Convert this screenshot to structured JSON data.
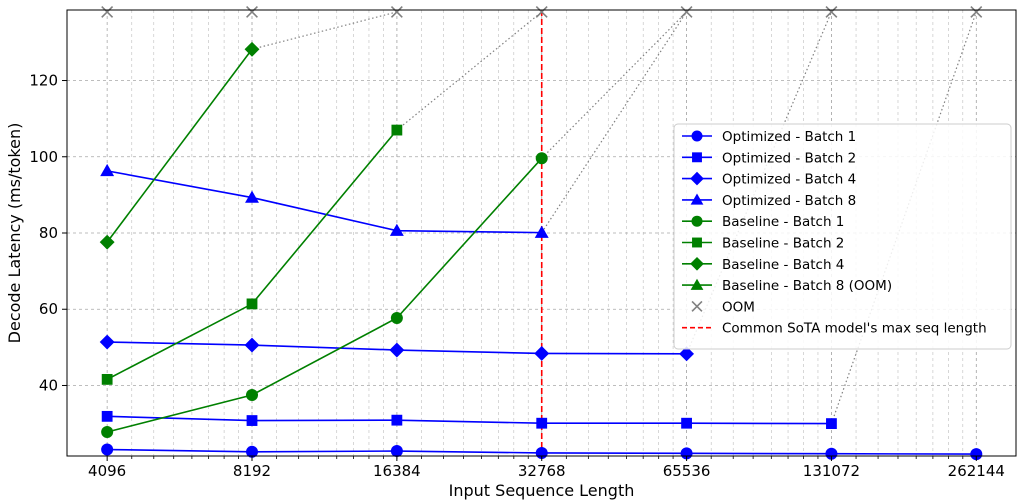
{
  "chart_data": {
    "type": "line",
    "xlabel": "Input Sequence Length",
    "ylabel": "Decode Latency (ms/token)",
    "x_scale": "log2",
    "x_ticks": [
      4096,
      8192,
      16384,
      32768,
      65536,
      131072,
      262144
    ],
    "x_tick_labels": [
      "4096",
      "8192",
      "16384",
      "32768",
      "65536",
      "131072",
      "262144"
    ],
    "xlim": [
      3380,
      317000
    ],
    "y_ticks": [
      40,
      60,
      80,
      100,
      120
    ],
    "y_tick_labels": [
      "40",
      "60",
      "80",
      "100",
      "120"
    ],
    "ylim": [
      21.5,
      138.5
    ],
    "grid": true,
    "legend_position": "center-right",
    "colors": {
      "optimized": "#0000ff",
      "baseline": "#008000",
      "oom": "#808080",
      "reference": "#ff0000"
    },
    "series": [
      {
        "name": "Optimized - Batch 1",
        "color": "#0000ff",
        "marker": "circle",
        "x": [
          4096,
          8192,
          16384,
          32768,
          65536,
          131072,
          262144
        ],
        "y": [
          23.2,
          22.6,
          22.8,
          22.3,
          22.2,
          22.1,
          22.0
        ]
      },
      {
        "name": "Optimized - Batch 2",
        "color": "#0000ff",
        "marker": "square",
        "x": [
          4096,
          8192,
          16384,
          32768,
          65536,
          131072
        ],
        "y": [
          31.9,
          30.8,
          30.9,
          30.1,
          30.1,
          30.0
        ]
      },
      {
        "name": "Optimized - Batch 4",
        "color": "#0000ff",
        "marker": "diamond",
        "x": [
          4096,
          8192,
          16384,
          32768,
          65536
        ],
        "y": [
          51.4,
          50.6,
          49.3,
          48.4,
          48.3
        ]
      },
      {
        "name": "Optimized - Batch 8",
        "color": "#0000ff",
        "marker": "triangle",
        "x": [
          4096,
          8192,
          16384,
          32768
        ],
        "y": [
          96.3,
          89.3,
          80.6,
          80.1
        ]
      },
      {
        "name": "Baseline - Batch 1",
        "color": "#008000",
        "marker": "circle",
        "x": [
          4096,
          8192,
          16384,
          32768
        ],
        "y": [
          27.8,
          37.5,
          57.7,
          99.6
        ]
      },
      {
        "name": "Baseline - Batch 2",
        "color": "#008000",
        "marker": "square",
        "x": [
          4096,
          8192,
          16384
        ],
        "y": [
          41.6,
          61.4,
          107.0
        ]
      },
      {
        "name": "Baseline - Batch 4",
        "color": "#008000",
        "marker": "diamond",
        "x": [
          4096,
          8192
        ],
        "y": [
          77.6,
          128.2
        ]
      },
      {
        "name": "Baseline - Batch 8 (OOM)",
        "color": "#008000",
        "marker": "triangle",
        "x": [],
        "y": []
      }
    ],
    "oom": {
      "name": "OOM",
      "y": 138,
      "x": [
        4096,
        8192,
        16384,
        32768,
        65536,
        131072,
        262144
      ]
    },
    "oom_links": [
      {
        "from": [
          8192,
          128.2
        ],
        "to": [
          16384,
          138
        ]
      },
      {
        "from": [
          16384,
          107.0
        ],
        "to": [
          32768,
          138
        ]
      },
      {
        "from": [
          32768,
          99.6
        ],
        "to": [
          65536,
          138
        ]
      },
      {
        "from": [
          32768,
          80.1
        ],
        "to": [
          65536,
          138
        ]
      },
      {
        "from": [
          65536,
          48.3
        ],
        "to": [
          131072,
          138
        ]
      },
      {
        "from": [
          131072,
          30.0
        ],
        "to": [
          262144,
          138
        ]
      }
    ],
    "reference_line": {
      "name": "Common SoTA model's max seq length",
      "x": 32768,
      "color": "#ff0000"
    }
  }
}
